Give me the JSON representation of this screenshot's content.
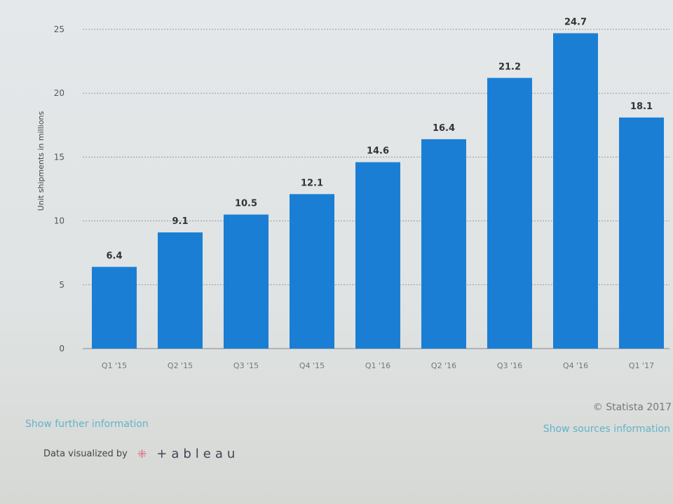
{
  "chart_data": {
    "type": "bar",
    "ylabel": "Unit shipments in millions",
    "categories": [
      "Q1 '15",
      "Q2 '15",
      "Q3 '15",
      "Q4 '15",
      "Q1 '16",
      "Q2 '16",
      "Q3 '16",
      "Q4 '16",
      "Q1 '17"
    ],
    "values": [
      6.4,
      9.1,
      10.5,
      12.1,
      14.6,
      16.4,
      21.2,
      24.7,
      18.1
    ],
    "ylim": [
      0,
      25
    ],
    "yticks": [
      0,
      5,
      10,
      15,
      20,
      25
    ],
    "grid": true,
    "bar_color": "#1a7fd4"
  },
  "footer": {
    "copyright": "© Statista 2017",
    "further": "Show further information",
    "sources": "Show sources information",
    "viz_by": "Data visualized by",
    "logo": "+ableau"
  }
}
